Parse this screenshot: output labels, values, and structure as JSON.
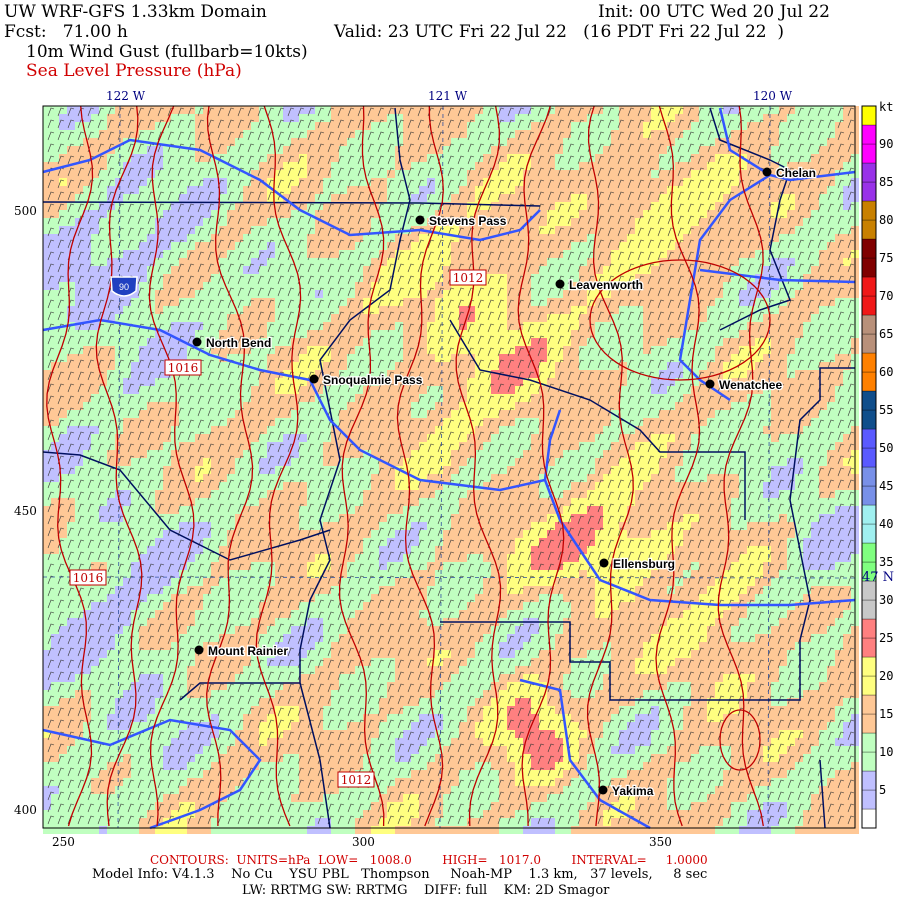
{
  "header": {
    "title": "UW WRF-GFS 1.33km Domain",
    "init": "Init: 00 UTC Wed 20 Jul 22",
    "fcst": "Fcst:   71.00 h",
    "valid": "Valid: 23 UTC Fri 22 Jul 22   (16 PDT Fri 22 Jul 22  )",
    "field1": "10m Wind Gust (fullbarb=10kts)",
    "field2": "Sea Level Pressure (hPa)"
  },
  "axes": {
    "top_lon": [
      "122 W",
      "121 W",
      "120 W"
    ],
    "left_grid": [
      "500",
      "450",
      "400"
    ],
    "bottom_grid": [
      "250",
      "300",
      "350"
    ],
    "right_lat": "47 N"
  },
  "cities": [
    "Chelan",
    "Stevens Pass",
    "Leavenworth",
    "North Bend",
    "Snoqualmie Pass",
    "Wenatchee",
    "Ellensburg",
    "Mount Rainier",
    "Yakima"
  ],
  "contour_labels": [
    "1012",
    "1016",
    "1016",
    "1012"
  ],
  "highway_shield": "90",
  "colorbar": {
    "unit": "kt",
    "labels": [
      "90",
      "85",
      "80",
      "75",
      "70",
      "65",
      "60",
      "55",
      "50",
      "45",
      "40",
      "35",
      "30",
      "25",
      "20",
      "15",
      "10",
      "5"
    ],
    "colors_low_to_high": [
      "#ffffff",
      "#c0c0ff",
      "#c0ffc0",
      "#ffc896",
      "#ffff80",
      "#ff8080",
      "#c8c8c8",
      "#80ff80",
      "#a0f0f0",
      "#7890e8",
      "#5a5aff",
      "#104e8b",
      "#ff8000",
      "#b8907a",
      "#f01818",
      "#800000",
      "#c88000",
      "#9932e8",
      "#ff00ff",
      "#ffff00"
    ]
  },
  "footer": {
    "contours": "CONTOURS:  UNITS=hPa  LOW=   1008.0        HIGH=   1017.0        INTERVAL=     1.0000",
    "model": "Model Info: V4.1.3    No Cu    YSU PBL   Thompson     Noah-MP    1.3 km,   37 levels,     8 sec",
    "physics": "LW: RRTMG SW: RRTMG    DIFF: full    KM: 2D Smagor"
  }
}
